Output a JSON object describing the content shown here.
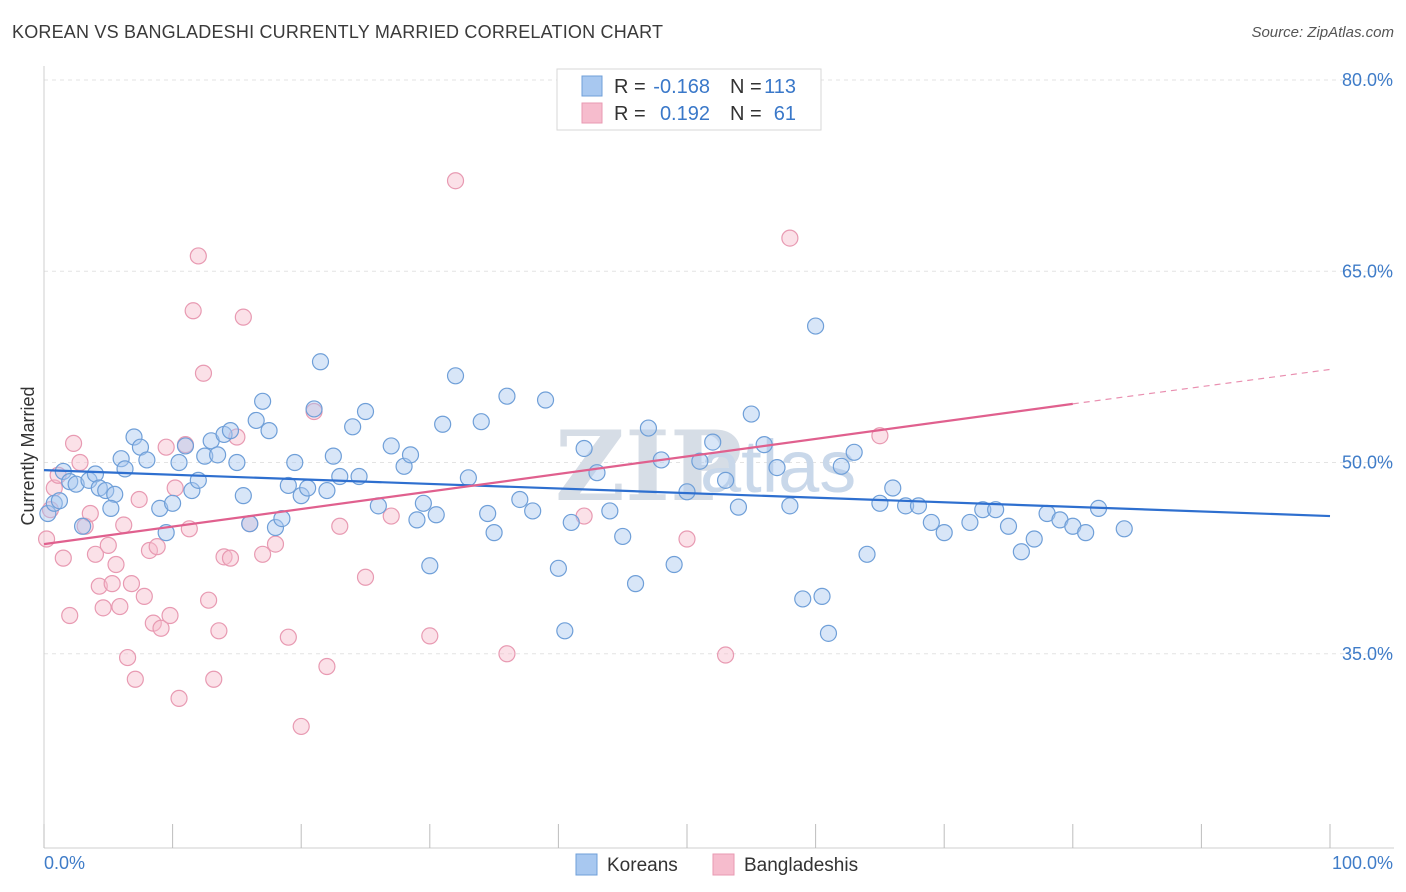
{
  "title": "KOREAN VS BANGLADESHI CURRENTLY MARRIED CORRELATION CHART",
  "source": "Source: ZipAtlas.com",
  "watermark": {
    "part1": "ZIP",
    "part2": "atlas"
  },
  "colors": {
    "korean_fill": "#a8c8f0",
    "korean_stroke": "#6f9fd8",
    "korean_line": "#2e6fcf",
    "bangla_fill": "#f6bccd",
    "bangla_stroke": "#e89ab2",
    "bangla_line": "#e0608e",
    "tick_text": "#3f7cc8",
    "grid": "#e3e3e3"
  },
  "legend": {
    "rows": [
      {
        "r_label": "R =",
        "r_value": "-0.168",
        "n_label": "N =",
        "n_value": "113"
      },
      {
        "r_label": "R =",
        "r_value": "0.192",
        "n_label": "N =",
        "n_value": "61"
      }
    ]
  },
  "bottom_legend": [
    "Koreans",
    "Bangladeshis"
  ],
  "chart_data": {
    "type": "scatter",
    "title": "KOREAN VS BANGLADESHI CURRENTLY MARRIED CORRELATION CHART",
    "xlabel": "",
    "ylabel": "Currently Married",
    "xlim": [
      0,
      100
    ],
    "ylim": [
      20,
      82.5
    ],
    "x_tick_labels": [
      "0.0%",
      "100.0%"
    ],
    "y_ticks": [
      35,
      50,
      65,
      80
    ],
    "y_tick_labels": [
      "35.0%",
      "50.0%",
      "65.0%",
      "80.0%"
    ],
    "grid": true,
    "legend_position": "top-center",
    "series": [
      {
        "name": "Koreans",
        "r": -0.168,
        "n": 113,
        "trend": {
          "x": [
            0,
            100
          ],
          "y": [
            49.4,
            45.8
          ]
        },
        "points": [
          [
            0.3,
            46
          ],
          [
            0.8,
            46.8
          ],
          [
            1.5,
            49.3
          ],
          [
            2,
            48.5
          ],
          [
            1.2,
            47
          ],
          [
            2.5,
            48.3
          ],
          [
            3,
            45
          ],
          [
            3.5,
            48.6
          ],
          [
            4,
            49.1
          ],
          [
            4.3,
            48
          ],
          [
            4.8,
            47.8
          ],
          [
            5.5,
            47.5
          ],
          [
            5.2,
            46.4
          ],
          [
            6,
            50.3
          ],
          [
            6.3,
            49.5
          ],
          [
            7,
            52
          ],
          [
            7.5,
            51.2
          ],
          [
            8,
            50.2
          ],
          [
            9,
            46.4
          ],
          [
            9.5,
            44.5
          ],
          [
            10,
            46.8
          ],
          [
            10.5,
            50
          ],
          [
            11,
            51.3
          ],
          [
            11.5,
            47.8
          ],
          [
            12,
            48.6
          ],
          [
            12.5,
            50.5
          ],
          [
            13,
            51.7
          ],
          [
            13.5,
            50.6
          ],
          [
            14,
            52.2
          ],
          [
            14.5,
            52.5
          ],
          [
            15,
            50
          ],
          [
            15.5,
            47.4
          ],
          [
            16,
            45.2
          ],
          [
            16.5,
            53.3
          ],
          [
            17,
            54.8
          ],
          [
            17.5,
            52.5
          ],
          [
            18,
            44.9
          ],
          [
            18.5,
            45.6
          ],
          [
            19,
            48.2
          ],
          [
            19.5,
            50
          ],
          [
            20,
            47.4
          ],
          [
            20.5,
            48
          ],
          [
            21,
            54.2
          ],
          [
            21.5,
            57.9
          ],
          [
            22,
            47.8
          ],
          [
            22.5,
            50.5
          ],
          [
            23,
            48.9
          ],
          [
            24,
            52.8
          ],
          [
            24.5,
            48.9
          ],
          [
            25,
            54
          ],
          [
            26,
            46.6
          ],
          [
            27,
            51.3
          ],
          [
            28,
            49.7
          ],
          [
            28.5,
            50.6
          ],
          [
            29,
            45.5
          ],
          [
            29.5,
            46.8
          ],
          [
            30,
            41.9
          ],
          [
            30.5,
            45.9
          ],
          [
            31,
            53
          ],
          [
            32,
            56.8
          ],
          [
            33,
            48.8
          ],
          [
            34,
            53.2
          ],
          [
            34.5,
            46
          ],
          [
            35,
            44.5
          ],
          [
            36,
            55.2
          ],
          [
            37,
            47.1
          ],
          [
            38,
            46.2
          ],
          [
            39,
            54.9
          ],
          [
            40,
            41.7
          ],
          [
            40.5,
            36.8
          ],
          [
            41,
            45.3
          ],
          [
            42,
            51.1
          ],
          [
            43,
            49.2
          ],
          [
            44,
            46.2
          ],
          [
            45,
            44.2
          ],
          [
            46,
            40.5
          ],
          [
            47,
            52.7
          ],
          [
            48,
            50.2
          ],
          [
            49,
            42
          ],
          [
            50,
            47.7
          ],
          [
            51,
            50.1
          ],
          [
            52,
            51.6
          ],
          [
            53,
            48.6
          ],
          [
            54,
            46.5
          ],
          [
            55,
            53.8
          ],
          [
            56,
            51.4
          ],
          [
            57,
            49.6
          ],
          [
            58,
            46.6
          ],
          [
            59,
            39.3
          ],
          [
            60,
            60.7
          ],
          [
            60.5,
            39.5
          ],
          [
            61,
            36.6
          ],
          [
            62,
            49.7
          ],
          [
            63,
            50.8
          ],
          [
            64,
            42.8
          ],
          [
            65,
            46.8
          ],
          [
            66,
            48
          ],
          [
            67,
            46.6
          ],
          [
            68,
            46.6
          ],
          [
            69,
            45.3
          ],
          [
            70,
            44.5
          ],
          [
            72,
            45.3
          ],
          [
            73,
            46.3
          ],
          [
            74,
            46.3
          ],
          [
            75,
            45
          ],
          [
            76,
            43
          ],
          [
            77,
            44
          ],
          [
            78,
            46
          ],
          [
            79,
            45.5
          ],
          [
            80,
            45
          ],
          [
            81,
            44.5
          ],
          [
            82,
            46.4
          ],
          [
            84,
            44.8
          ]
        ]
      },
      {
        "name": "Bangladeshis",
        "r": 0.192,
        "n": 61,
        "trend": {
          "x": [
            0,
            80
          ],
          "y": [
            43.6,
            54.6
          ],
          "dashed_to": [
            100,
            57.3
          ]
        },
        "points": [
          [
            0.2,
            44
          ],
          [
            0.5,
            46.3
          ],
          [
            0.8,
            48
          ],
          [
            1.1,
            49
          ],
          [
            1.5,
            42.5
          ],
          [
            2,
            38
          ],
          [
            2.3,
            51.5
          ],
          [
            2.8,
            50
          ],
          [
            3.2,
            45
          ],
          [
            3.6,
            46
          ],
          [
            4,
            42.8
          ],
          [
            4.3,
            40.3
          ],
          [
            4.6,
            38.6
          ],
          [
            5,
            43.5
          ],
          [
            5.3,
            40.5
          ],
          [
            5.6,
            42
          ],
          [
            5.9,
            38.7
          ],
          [
            6.2,
            45.1
          ],
          [
            6.5,
            34.7
          ],
          [
            6.8,
            40.5
          ],
          [
            7.1,
            33
          ],
          [
            7.4,
            47.1
          ],
          [
            7.8,
            39.5
          ],
          [
            8.2,
            43.1
          ],
          [
            8.5,
            37.4
          ],
          [
            8.8,
            43.4
          ],
          [
            9.1,
            37
          ],
          [
            9.5,
            51.2
          ],
          [
            9.8,
            38
          ],
          [
            10.2,
            48
          ],
          [
            10.5,
            31.5
          ],
          [
            11,
            51.4
          ],
          [
            11.3,
            44.8
          ],
          [
            11.6,
            61.9
          ],
          [
            12,
            66.2
          ],
          [
            12.4,
            57
          ],
          [
            12.8,
            39.2
          ],
          [
            13.2,
            33
          ],
          [
            13.6,
            36.8
          ],
          [
            14,
            42.6
          ],
          [
            14.5,
            42.5
          ],
          [
            15,
            52
          ],
          [
            15.5,
            61.4
          ],
          [
            16,
            45.2
          ],
          [
            17,
            42.8
          ],
          [
            18,
            43.6
          ],
          [
            19,
            36.3
          ],
          [
            20,
            29.3
          ],
          [
            21,
            54
          ],
          [
            22,
            34
          ],
          [
            23,
            45
          ],
          [
            25,
            41
          ],
          [
            27,
            45.8
          ],
          [
            30,
            36.4
          ],
          [
            32,
            72.1
          ],
          [
            36,
            35
          ],
          [
            42,
            45.8
          ],
          [
            50,
            44
          ],
          [
            53,
            34.9
          ],
          [
            58,
            67.6
          ],
          [
            65,
            52.1
          ]
        ]
      }
    ]
  }
}
